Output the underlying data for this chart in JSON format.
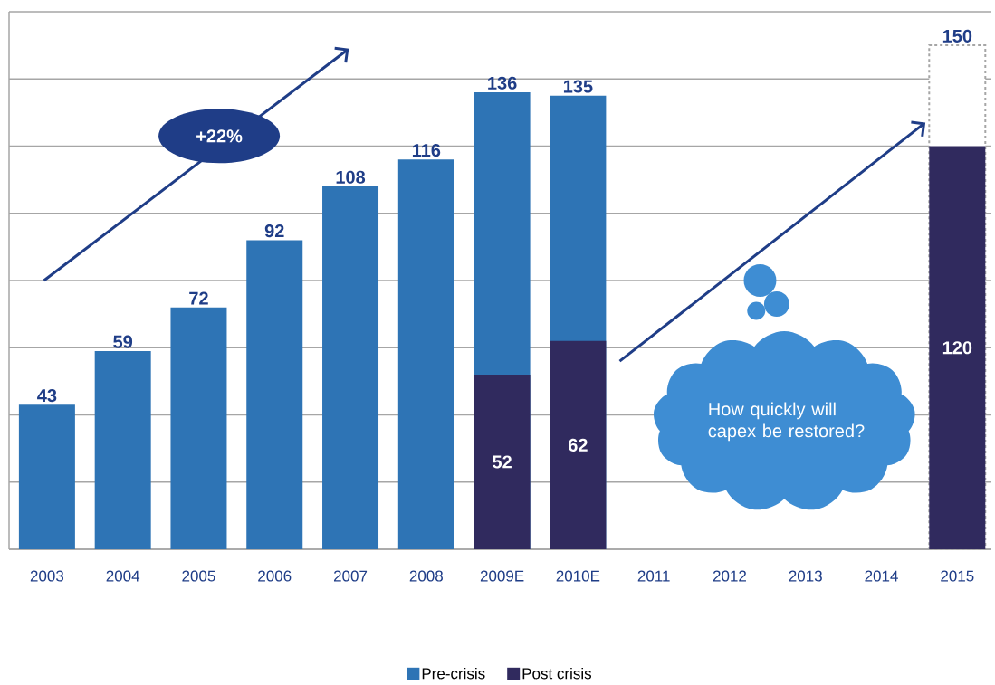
{
  "chart_data": {
    "type": "bar",
    "categories": [
      "2003",
      "2004",
      "2005",
      "2006",
      "2007",
      "2008",
      "2009E",
      "2010E",
      "2011",
      "2012",
      "2013",
      "2014",
      "2015"
    ],
    "series": [
      {
        "type": "bar",
        "color": "#a6a6a6",
        "line_style": "dashed",
        "values": [
          null,
          null,
          null,
          null,
          null,
          null,
          null,
          null,
          null,
          null,
          null,
          null,
          150
        ]
      },
      {
        "name": "Pre-crisis",
        "color": "#2e74b5",
        "values": [
          43,
          59,
          72,
          92,
          108,
          116,
          136,
          135,
          null,
          null,
          null,
          null,
          null
        ]
      },
      {
        "name": "Post crisis",
        "color": "#302a5e",
        "values": [
          null,
          null,
          null,
          null,
          null,
          null,
          52,
          62,
          null,
          null,
          null,
          null,
          120
        ]
      }
    ],
    "ylim": [
      0,
      160
    ],
    "yticks": [
      {
        "value": 0,
        "label": null
      },
      {
        "value": 20,
        "label": null
      },
      {
        "value": 40,
        "label": null
      },
      {
        "value": 60,
        "label": null
      },
      {
        "value": 80,
        "label": null
      },
      {
        "value": 100,
        "label": null
      },
      {
        "value": 120,
        "label": null
      },
      {
        "value": 140,
        "label": null
      },
      {
        "value": 160,
        "label": null
      }
    ],
    "tick_labels": "x",
    "grid": "y",
    "data_labels": true,
    "legend": "bottom",
    "annotations": [
      "+22%",
      "How quickly will capex be restored?"
    ]
  }
}
